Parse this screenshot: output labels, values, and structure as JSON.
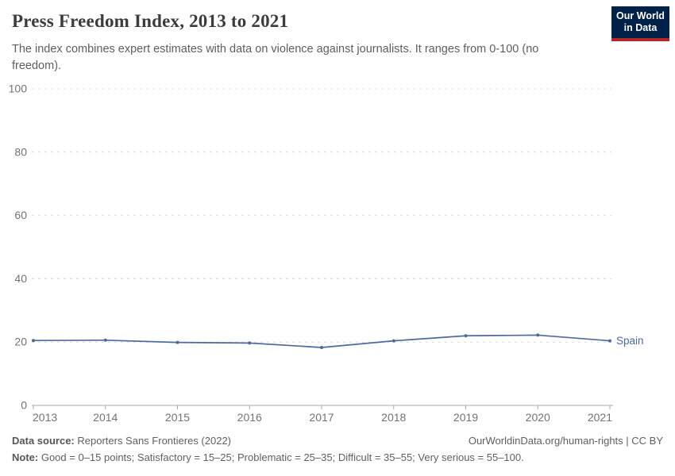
{
  "header": {
    "title": "Press Freedom Index, 2013 to 2021",
    "subtitle": "The index combines expert estimates with data on violence against journalists. It ranges from 0-100 (no freedom).",
    "logo": {
      "line1": "Our World",
      "line2": "in Data",
      "bg_color": "#002147",
      "stripe_color": "#b62727"
    }
  },
  "chart_data": {
    "type": "line",
    "title": "Press Freedom Index, 2013 to 2021",
    "x": [
      2013,
      2014,
      2015,
      2016,
      2017,
      2018,
      2019,
      2020,
      2021
    ],
    "series": [
      {
        "name": "Spain",
        "color": "#4C6A9C",
        "values": [
          20.5,
          20.6,
          19.9,
          19.7,
          18.3,
          20.4,
          22.0,
          22.2,
          20.4
        ]
      }
    ],
    "xlabel": "",
    "ylabel": "",
    "ylim": [
      0,
      100
    ],
    "yticks": [
      0,
      20,
      40,
      60,
      80,
      100
    ],
    "grid": "horizontal-dashed",
    "legend": "line-end-label",
    "colors": {
      "grid": "#d9d9d9",
      "axis": "#a8a8a8",
      "tick_label": "#737373"
    }
  },
  "footer": {
    "source_label": "Data source:",
    "source_text": " Reporters Sans Frontieres (2022)",
    "link_text": "OurWorldinData.org/human-rights | CC BY",
    "note_label": "Note:",
    "note_text": " Good = 0–15 points; Satisfactory = 15–25; Problematic = 25–35; Difficult = 35–55; Very serious = 55–100."
  }
}
